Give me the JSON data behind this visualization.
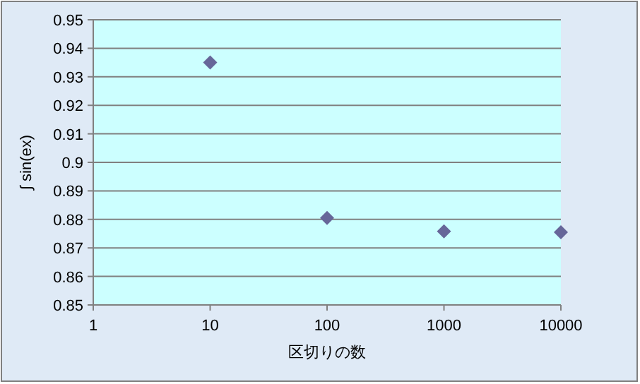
{
  "chart_data": {
    "type": "scatter",
    "xlabel": "区切りの数",
    "ylabel": "∫ sin(ex)",
    "log": "x",
    "grid": "y",
    "marker": "diamond",
    "xlim": [
      1,
      10000
    ],
    "xticks": [
      1,
      10,
      100,
      1000,
      10000
    ],
    "ylim": [
      0.85,
      0.95
    ],
    "yticks": [
      0.85,
      0.86,
      0.87,
      0.88,
      0.89,
      0.9,
      0.91,
      0.92,
      0.93,
      0.94,
      0.95
    ],
    "series": [
      {
        "color": "#666699",
        "x": [
          10,
          100,
          1000,
          10000
        ],
        "values": [
          0.935,
          0.8805,
          0.8758,
          0.8755
        ]
      }
    ]
  }
}
